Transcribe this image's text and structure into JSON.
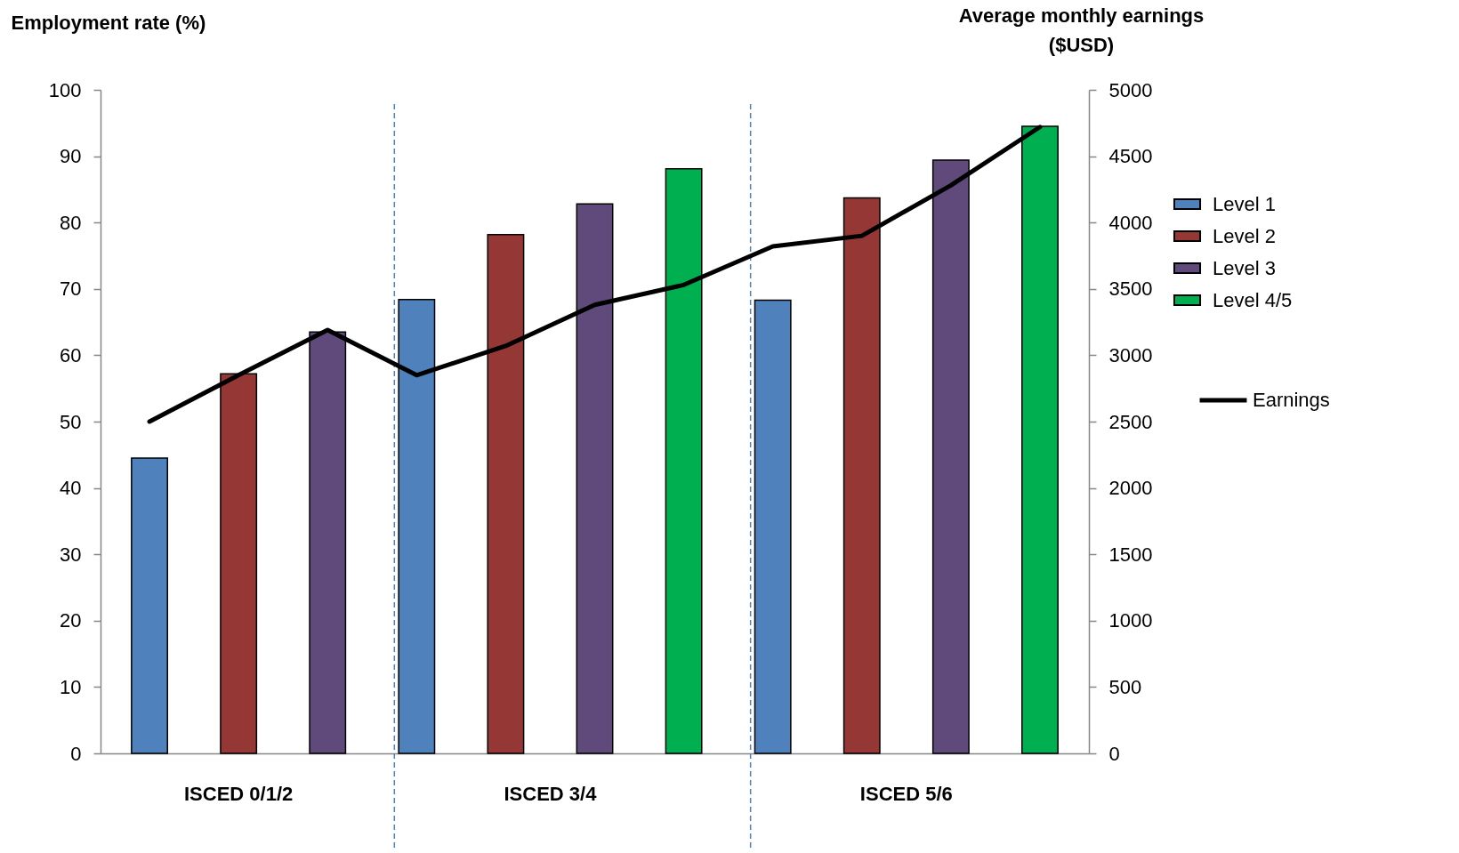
{
  "chart_data": {
    "type": "bar",
    "ylabel": "Employment rate (%)",
    "y2label": "Average monthly earnings ($USD)",
    "categories": [
      null,
      null,
      null,
      null,
      null,
      null,
      null,
      null,
      null,
      null,
      null
    ],
    "series": [
      {
        "name": "Level 1",
        "color": "#4f81bd",
        "values": [
          44.5,
          null,
          null,
          68.4,
          null,
          null,
          null,
          68.3,
          null,
          null,
          null
        ]
      },
      {
        "name": "Level 2",
        "color": "#953735",
        "values": [
          null,
          57.2,
          null,
          null,
          78.2,
          null,
          null,
          null,
          83.7,
          null,
          null
        ]
      },
      {
        "name": "Level 3",
        "color": "#604a7b",
        "values": [
          null,
          null,
          63.5,
          null,
          null,
          82.8,
          null,
          null,
          null,
          89.4,
          null
        ]
      },
      {
        "name": "Level 4/5",
        "color": "#00b050",
        "values": [
          null,
          null,
          null,
          null,
          null,
          null,
          88.1,
          null,
          null,
          null,
          94.5
        ]
      },
      {
        "name": "Earnings",
        "type": "line",
        "axis": "y2",
        "color": "#000000",
        "values": [
          2500,
          2850,
          3190,
          2850,
          3070,
          3380,
          3530,
          3820,
          3900,
          4280,
          4720
        ]
      }
    ],
    "ylim": [
      0,
      100
    ],
    "yticks": [
      0,
      10,
      20,
      30,
      40,
      50,
      60,
      70,
      80,
      90,
      100
    ],
    "y2lim": [
      0,
      5000
    ],
    "y2ticks": [
      0,
      500,
      1000,
      1500,
      2000,
      2500,
      3000,
      3500,
      4000,
      4500,
      5000
    ],
    "annotations": [
      "ISCED 0/1/2",
      "ISCED 3/4",
      "ISCED 5/6"
    ],
    "legend": "right"
  }
}
